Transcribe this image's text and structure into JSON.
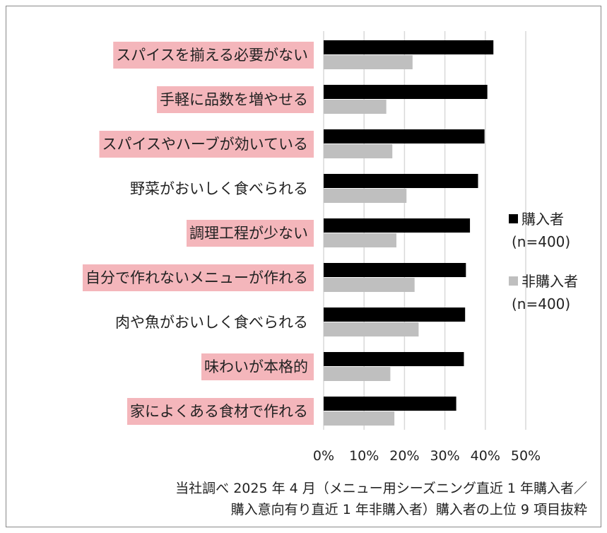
{
  "chart_data": {
    "type": "bar",
    "orientation": "horizontal",
    "categories": [
      "スパイスを揃える必要がない",
      "手軽に品数を増やせる",
      "スパイスやハーブが効いている",
      "野菜がおいしく食べられる",
      "調理工程が少ない",
      "自分で作れないメニューが作れる",
      "肉や魚がおいしく食べられる",
      "味わいが本格的",
      "家によくある食材で作れる"
    ],
    "highlighted": [
      true,
      true,
      true,
      false,
      true,
      true,
      false,
      true,
      true
    ],
    "series": [
      {
        "legend_lines": [
          "購入者",
          "(n=400)"
        ],
        "color": "#000000",
        "values": [
          42,
          40.5,
          39.8,
          38.2,
          36.2,
          35.2,
          35,
          34.7,
          32.8
        ]
      },
      {
        "legend_lines": [
          "非購入者",
          "(n=400)"
        ],
        "color": "#bfbfbf",
        "values": [
          22,
          15.5,
          17,
          20.5,
          18,
          22.5,
          23.5,
          16.5,
          17.5
        ]
      }
    ],
    "x_ticks": [
      "0%",
      "10%",
      "20%",
      "30%",
      "40%",
      "50%"
    ],
    "xlim": [
      0,
      50
    ],
    "grid": true,
    "legend_position": "right",
    "highlight_color": "#f4b6bb"
  },
  "footnote": {
    "line1": "当社調べ 2025 年 4 月（メニュー用シーズニング直近 1 年購入者／",
    "line2": "購入意向有り直近 1 年非購入者）購入者の上位 9 項目抜粋"
  }
}
